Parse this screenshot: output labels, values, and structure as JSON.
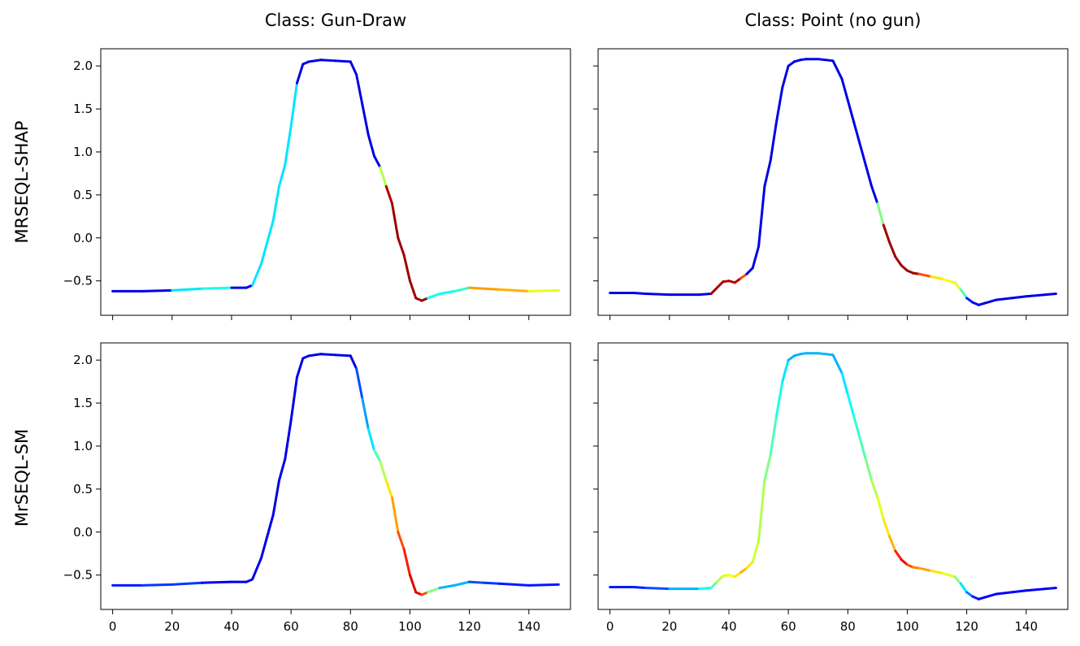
{
  "chart_data": {
    "type": "line",
    "col_titles": [
      "Class: Gun-Draw",
      "Class: Point (no gun)"
    ],
    "row_labels": [
      "MRSEQL-SHAP",
      "MrSEQL-SM"
    ],
    "x_ticks": [
      0,
      20,
      40,
      60,
      80,
      100,
      120,
      140
    ],
    "y_ticks": [
      -0.5,
      0.0,
      0.5,
      1.0,
      1.5,
      2.0
    ],
    "y_tick_labels": [
      "−0.5",
      "0.0",
      "0.5",
      "1.0",
      "1.5",
      "2.0"
    ],
    "xlim": [
      -4,
      154
    ],
    "ylim": [
      -0.9,
      2.2
    ],
    "grid": false,
    "colormap": "jet",
    "series": {
      "gun_draw": {
        "x": [
          0,
          10,
          20,
          30,
          40,
          45,
          47,
          50,
          52,
          54,
          56,
          58,
          60,
          62,
          64,
          66,
          70,
          75,
          80,
          82,
          84,
          86,
          88,
          90,
          92,
          94,
          96,
          98,
          100,
          102,
          104,
          106,
          110,
          115,
          120,
          125,
          130,
          140,
          150
        ],
        "y": [
          -0.62,
          -0.62,
          -0.61,
          -0.59,
          -0.58,
          -0.58,
          -0.55,
          -0.3,
          -0.05,
          0.2,
          0.6,
          0.85,
          1.3,
          1.8,
          2.02,
          2.05,
          2.07,
          2.06,
          2.05,
          1.9,
          1.55,
          1.2,
          0.95,
          0.82,
          0.6,
          0.4,
          0.0,
          -0.2,
          -0.5,
          -0.7,
          -0.73,
          -0.7,
          -0.65,
          -0.62,
          -0.58,
          -0.59,
          -0.6,
          -0.62,
          -0.61
        ]
      },
      "point_no_gun": {
        "x": [
          0,
          8,
          12,
          20,
          30,
          34,
          36,
          38,
          40,
          42,
          44,
          46,
          48,
          50,
          52,
          54,
          56,
          58,
          60,
          62,
          64,
          66,
          70,
          75,
          78,
          80,
          82,
          84,
          86,
          88,
          90,
          92,
          94,
          96,
          98,
          100,
          102,
          104,
          108,
          112,
          116,
          118,
          120,
          122,
          124,
          126,
          130,
          140,
          150
        ],
        "y": [
          -0.64,
          -0.64,
          -0.65,
          -0.66,
          -0.66,
          -0.65,
          -0.58,
          -0.51,
          -0.5,
          -0.52,
          -0.47,
          -0.42,
          -0.35,
          -0.1,
          0.6,
          0.9,
          1.35,
          1.75,
          2.0,
          2.05,
          2.07,
          2.08,
          2.08,
          2.06,
          1.85,
          1.6,
          1.35,
          1.1,
          0.85,
          0.6,
          0.4,
          0.15,
          -0.05,
          -0.22,
          -0.32,
          -0.38,
          -0.41,
          -0.42,
          -0.45,
          -0.48,
          -0.52,
          -0.6,
          -0.7,
          -0.75,
          -0.78,
          -0.76,
          -0.72,
          -0.68,
          -0.65
        ]
      }
    },
    "panels": [
      {
        "row": 0,
        "col": 0,
        "series": "gun_draw",
        "colors": [
          0.1,
          0.1,
          0.35,
          0.4,
          0.1,
          0.1,
          0.35,
          0.35,
          0.35,
          0.35,
          0.35,
          0.35,
          0.35,
          0.1,
          0.1,
          0.1,
          0.1,
          0.1,
          0.1,
          0.1,
          0.1,
          0.1,
          0.1,
          0.55,
          0.95,
          0.97,
          0.97,
          0.97,
          0.97,
          0.97,
          0.97,
          0.4,
          0.38,
          0.42,
          0.72,
          0.72,
          0.7,
          0.6,
          0.6
        ]
      },
      {
        "row": 0,
        "col": 1,
        "series": "point_no_gun",
        "colors": [
          0.1,
          0.1,
          0.1,
          0.1,
          0.1,
          0.97,
          0.95,
          0.95,
          0.95,
          0.95,
          0.8,
          0.1,
          0.1,
          0.1,
          0.1,
          0.1,
          0.1,
          0.1,
          0.1,
          0.1,
          0.1,
          0.1,
          0.1,
          0.1,
          0.1,
          0.1,
          0.1,
          0.1,
          0.1,
          0.1,
          0.5,
          0.97,
          0.97,
          0.97,
          0.97,
          0.97,
          0.97,
          0.8,
          0.65,
          0.62,
          0.6,
          0.45,
          0.15,
          0.1,
          0.1,
          0.1,
          0.1,
          0.1,
          0.1
        ]
      },
      {
        "row": 1,
        "col": 0,
        "series": "gun_draw",
        "colors": [
          0.15,
          0.18,
          0.18,
          0.12,
          0.1,
          0.1,
          0.1,
          0.1,
          0.1,
          0.1,
          0.1,
          0.1,
          0.1,
          0.1,
          0.1,
          0.1,
          0.1,
          0.1,
          0.1,
          0.2,
          0.28,
          0.35,
          0.45,
          0.55,
          0.65,
          0.72,
          0.8,
          0.85,
          0.9,
          0.9,
          0.8,
          0.5,
          0.3,
          0.3,
          0.2,
          0.18,
          0.15,
          0.15,
          0.12
        ]
      },
      {
        "row": 1,
        "col": 1,
        "series": "point_no_gun",
        "colors": [
          0.15,
          0.15,
          0.2,
          0.3,
          0.38,
          0.45,
          0.55,
          0.6,
          0.62,
          0.65,
          0.7,
          0.65,
          0.58,
          0.55,
          0.5,
          0.45,
          0.4,
          0.35,
          0.3,
          0.3,
          0.3,
          0.3,
          0.3,
          0.3,
          0.35,
          0.38,
          0.42,
          0.45,
          0.5,
          0.55,
          0.6,
          0.65,
          0.7,
          0.85,
          0.88,
          0.8,
          0.75,
          0.72,
          0.65,
          0.6,
          0.5,
          0.35,
          0.25,
          0.15,
          0.12,
          0.12,
          0.12,
          0.12,
          0.12
        ]
      }
    ]
  }
}
